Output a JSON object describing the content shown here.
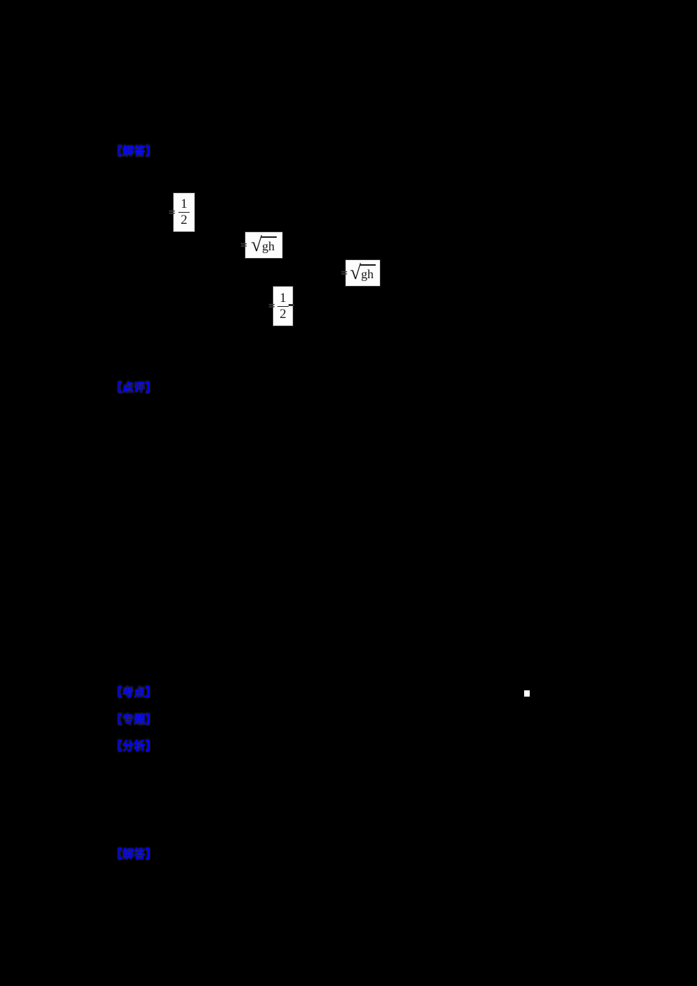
{
  "document": {
    "background_color": "#000000",
    "label_color": "#0000fe",
    "formula_background": "#fdfdfd",
    "formula_ink": "#151515",
    "section_labels": [
      {
        "id": "jieda-1",
        "text": "【解答】"
      },
      {
        "id": "dianping",
        "text": "【点评】"
      },
      {
        "id": "kaodian",
        "text": "【考点】"
      },
      {
        "id": "zhuanti",
        "text": "【专题】"
      },
      {
        "id": "fenxi",
        "text": "【分析】"
      },
      {
        "id": "jieda-2",
        "text": "【解答】"
      }
    ],
    "formulas": [
      {
        "kind": "fraction",
        "prefix": "=",
        "numerator": "1",
        "denominator": "2"
      },
      {
        "kind": "sqrt",
        "prefix": "=",
        "radical_sign": "√",
        "radicand": "gh"
      },
      {
        "kind": "sqrt",
        "prefix": "=",
        "radical_sign": "√",
        "radicand": "gh"
      },
      {
        "kind": "fraction",
        "prefix": "=",
        "numerator": "1",
        "denominator": "2"
      }
    ],
    "artifact": {
      "kind": "small-white-square"
    }
  }
}
